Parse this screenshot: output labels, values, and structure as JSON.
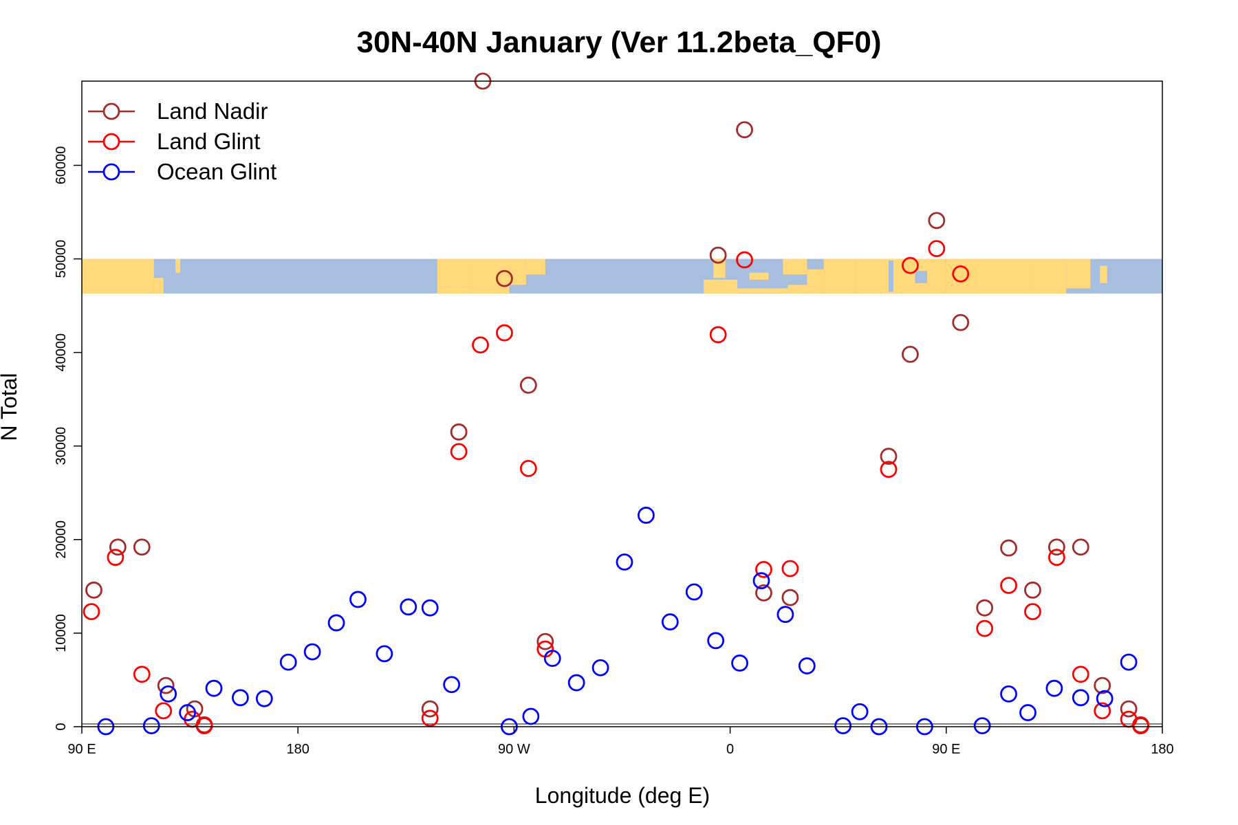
{
  "chart_data": {
    "type": "scatter",
    "title": "30N-40N January (Ver 11.2beta_QF0)",
    "xlabel": "Longitude (deg E)",
    "ylabel": "N Total",
    "xlim": [
      90,
      540
    ],
    "ylim": [
      0,
      69000
    ],
    "x_ticks": [
      {
        "value": 90,
        "label": "90 E"
      },
      {
        "value": 180,
        "label": "180"
      },
      {
        "value": 270,
        "label": "90 W"
      },
      {
        "value": 360,
        "label": "0"
      },
      {
        "value": 450,
        "label": "90 E"
      },
      {
        "value": 540,
        "label": "180"
      }
    ],
    "y_ticks": [
      {
        "value": 0,
        "label": "0"
      },
      {
        "value": 10000,
        "label": "10000"
      },
      {
        "value": 20000,
        "label": "20000"
      },
      {
        "value": 30000,
        "label": "30000"
      },
      {
        "value": 40000,
        "label": "40000"
      },
      {
        "value": 50000,
        "label": "50000"
      },
      {
        "value": 60000,
        "label": "60000"
      }
    ],
    "map_strip": {
      "ymin": 46300,
      "ymax": 50000,
      "land_color": "#FFD97A",
      "ocean_color": "#A7BEDF"
    },
    "legend": {
      "position": "top-left"
    },
    "series": [
      {
        "name": "Land Nadir",
        "color": "#A52A2A",
        "points": [
          [
            95,
            14600
          ],
          [
            105,
            19200
          ],
          [
            115,
            19200
          ],
          [
            125,
            4400
          ],
          [
            137,
            1900
          ],
          [
            141,
            200
          ],
          [
            235,
            1900
          ],
          [
            247,
            31500
          ],
          [
            257,
            69000
          ],
          [
            266,
            47900
          ],
          [
            276,
            36500
          ],
          [
            283,
            9100
          ],
          [
            355,
            50400
          ],
          [
            366,
            63800
          ],
          [
            374,
            14300
          ],
          [
            385,
            13800
          ],
          [
            426,
            28900
          ],
          [
            435,
            39800
          ],
          [
            446,
            54100
          ],
          [
            456,
            43200
          ],
          [
            466,
            12700
          ],
          [
            476,
            19100
          ],
          [
            486,
            14600
          ],
          [
            496,
            19200
          ],
          [
            506,
            19200
          ],
          [
            515,
            4400
          ],
          [
            526,
            1900
          ],
          [
            531,
            200
          ]
        ]
      },
      {
        "name": "Land Glint",
        "color": "#FF0000",
        "points": [
          [
            94,
            12300
          ],
          [
            104,
            18100
          ],
          [
            115,
            5600
          ],
          [
            124,
            1700
          ],
          [
            136,
            800
          ],
          [
            141,
            100
          ],
          [
            235,
            900
          ],
          [
            247,
            29400
          ],
          [
            256,
            40800
          ],
          [
            266,
            42100
          ],
          [
            276,
            27600
          ],
          [
            283,
            8300
          ],
          [
            355,
            41900
          ],
          [
            366,
            49900
          ],
          [
            374,
            16800
          ],
          [
            385,
            16900
          ],
          [
            426,
            27500
          ],
          [
            435,
            49300
          ],
          [
            446,
            51100
          ],
          [
            456,
            48400
          ],
          [
            466,
            10500
          ],
          [
            476,
            15100
          ],
          [
            486,
            12300
          ],
          [
            496,
            18100
          ],
          [
            506,
            5600
          ],
          [
            515,
            1700
          ],
          [
            526,
            800
          ],
          [
            531,
            100
          ]
        ]
      },
      {
        "name": "Ocean Glint",
        "color": "#0000FF",
        "points": [
          [
            100,
            0
          ],
          [
            119,
            100
          ],
          [
            126,
            3500
          ],
          [
            134,
            1500
          ],
          [
            145,
            4100
          ],
          [
            156,
            3100
          ],
          [
            166,
            3000
          ],
          [
            176,
            6900
          ],
          [
            186,
            8000
          ],
          [
            196,
            11100
          ],
          [
            205,
            13600
          ],
          [
            216,
            7800
          ],
          [
            226,
            12800
          ],
          [
            235,
            12700
          ],
          [
            244,
            4500
          ],
          [
            268,
            0
          ],
          [
            277,
            1100
          ],
          [
            286,
            7300
          ],
          [
            296,
            4700
          ],
          [
            306,
            6300
          ],
          [
            316,
            17600
          ],
          [
            325,
            22600
          ],
          [
            335,
            11200
          ],
          [
            345,
            14400
          ],
          [
            354,
            9200
          ],
          [
            364,
            6800
          ],
          [
            373,
            15600
          ],
          [
            383,
            12000
          ],
          [
            392,
            6500
          ],
          [
            407,
            100
          ],
          [
            414,
            1600
          ],
          [
            422,
            0
          ],
          [
            441,
            0
          ],
          [
            465,
            100
          ],
          [
            476,
            3500
          ],
          [
            484,
            1500
          ],
          [
            495,
            4100
          ],
          [
            506,
            3100
          ],
          [
            516,
            3000
          ],
          [
            526,
            6900
          ]
        ]
      }
    ]
  }
}
